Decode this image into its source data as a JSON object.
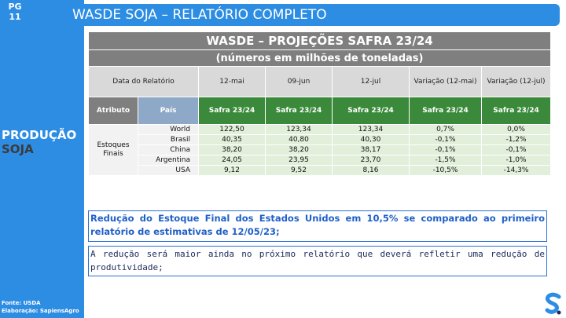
{
  "page": {
    "label": "PG",
    "number": "11"
  },
  "title": "WASDE SOJA – RELATÓRIO COMPLETO",
  "sidebar": {
    "line1": "PRODUÇÃO",
    "line2": "SOJA"
  },
  "footer": {
    "source": "Fonte: USDA",
    "credit": "Elaboração: SapiensAgro"
  },
  "table": {
    "title": "WASDE – PROJEÇÕES SAFRA 23/24",
    "subtitle": "(números em milhões de toneladas)",
    "header": [
      "Data do Relatório",
      "12-mai",
      "09-jun",
      "12-jul",
      "Variação (12-mai)",
      "Variação (12-jul)"
    ],
    "subheader": [
      "Atributo",
      "País",
      "Safra 23/24",
      "Safra 23/24",
      "Safra 23/24",
      "Safra 23/24",
      "Safra 23/24"
    ],
    "attribute": "Estoques Finais",
    "rows": [
      [
        "World",
        "122,50",
        "123,34",
        "123,34",
        "0,7%",
        "0,0%"
      ],
      [
        "Brasil",
        "40,35",
        "40,80",
        "40,30",
        "-0,1%",
        "-1,2%"
      ],
      [
        "China",
        "38,20",
        "38,20",
        "38,17",
        "-0,1%",
        "-0,1%"
      ],
      [
        "Argentina",
        "24,05",
        "23,95",
        "23,70",
        "-1,5%",
        "-1,0%"
      ],
      [
        "USA",
        "9,12",
        "9,52",
        "8,16",
        "-10,5%",
        "-14,3%"
      ]
    ]
  },
  "notes": [
    "Redução do Estoque Final dos Estados Unidos em 10,5% se comparado ao primeiro relatório de estimativas de 12/05/23;",
    "A redução será maior ainda no próximo relatório que deverá refletir uma redução de produtividade;"
  ]
}
